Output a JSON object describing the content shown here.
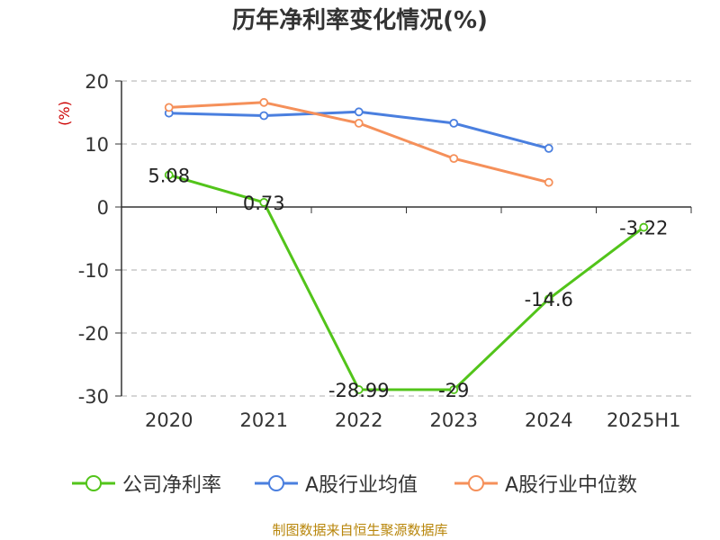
{
  "chart_data": {
    "type": "line",
    "title": "历年净利率变化情况(%)",
    "ylabel": "(%)",
    "ylim": [
      -30,
      20
    ],
    "yticks": [
      20,
      10,
      0,
      -10,
      -20,
      -30
    ],
    "categories": [
      "2020",
      "2021",
      "2022",
      "2023",
      "2024",
      "2025H1"
    ],
    "grid": true,
    "legend_position": "bottom",
    "series": [
      {
        "name": "公司净利率",
        "color": "#52c41a",
        "values": [
          5.08,
          0.73,
          -28.99,
          -29,
          -14.6,
          -3.22
        ],
        "data_labels": [
          "5.08",
          "0.73",
          "-28.99",
          "-29",
          "-14.6",
          "-3.22"
        ]
      },
      {
        "name": "A股行业均值",
        "color": "#4a7fdf",
        "values": [
          14.9,
          14.5,
          15.1,
          13.3,
          9.3,
          null
        ]
      },
      {
        "name": "A股行业中位数",
        "color": "#f5905a",
        "values": [
          15.8,
          16.6,
          13.3,
          7.7,
          3.9,
          null
        ]
      }
    ]
  },
  "source": "制图数据来自恒生聚源数据库"
}
